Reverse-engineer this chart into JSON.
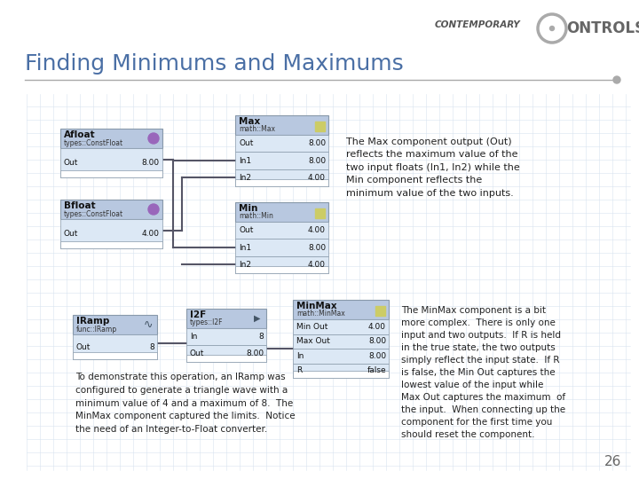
{
  "title": "Finding Minimums and Maximums",
  "slide_number": "26",
  "bg_color": "#ffffff",
  "title_color": "#4a6fa5",
  "title_fontsize": 18,
  "line_color": "#aaaaaa",
  "grid_color": "#d8e4f0",
  "component_header_color": "#b8c8e0",
  "component_body_color": "#dce8f5",
  "component_border_color": "#8899aa",
  "text_color": "#222222",
  "annotation_fontsize": 8.0,
  "wire_color": "#555566",
  "page_num_color": "#666666",
  "upper_desc": "The Max component output (Out)\nreflects the maximum value of the\ntwo input floats (In1, In2) while the\nMin component reflects the\nminimum value of the two inputs.",
  "lower_desc": "The MinMax component is a bit\nmore complex.  There is only one\ninput and two outputs.  If R is held\nin the true state, the two outputs\nsimply reflect the input state.  If R\nis false, the Min Out captures the\nlowest value of the input while\nMax Out captures the maximum  of\nthe input.  When connecting up the\ncomponent for the first time you\nshould reset the component.",
  "lower_caption": "To demonstrate this operation, an IRamp was\nconfigured to generate a triangle wave with a\nminimum value of 4 and a maximum of 8.  The\nMinMax component captured the limits.  Notice\nthe need of an Integer-to-Float converter."
}
